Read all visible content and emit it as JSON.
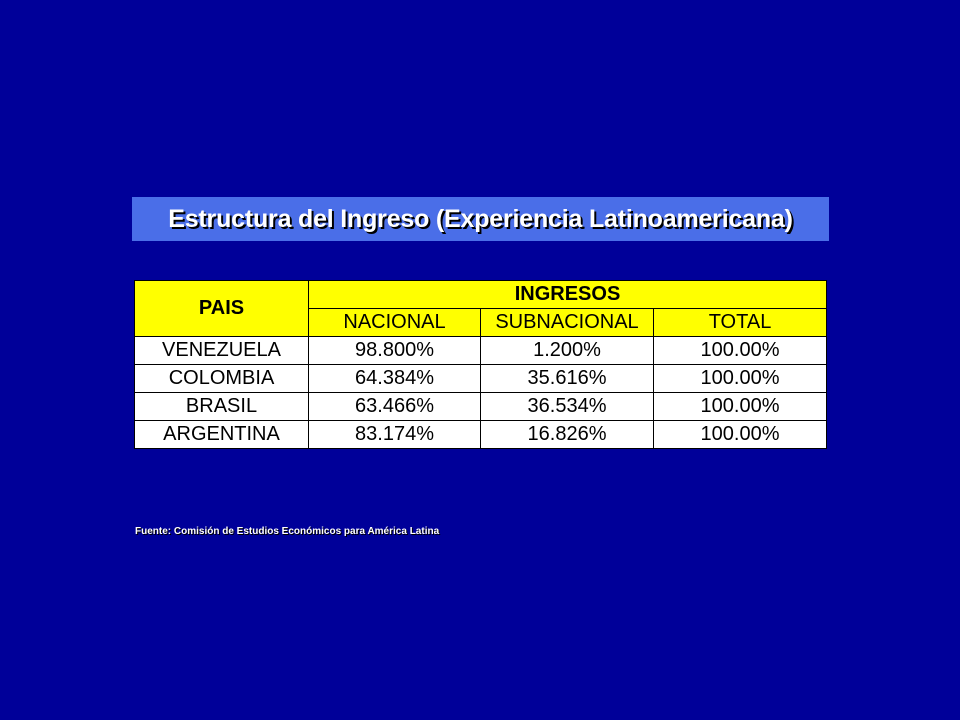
{
  "title": "Estructura del Ingreso (Experiencia Latinoamericana)",
  "table": {
    "header_pais": "PAIS",
    "header_group": "INGRESOS",
    "subheaders": [
      "NACIONAL",
      "SUBNACIONAL",
      "TOTAL"
    ],
    "rows": [
      {
        "pais": "VENEZUELA",
        "nacional": "98.800%",
        "subnacional": "1.200%",
        "total": "100.00%"
      },
      {
        "pais": "COLOMBIA",
        "nacional": "64.384%",
        "subnacional": "35.616%",
        "total": "100.00%"
      },
      {
        "pais": "BRASIL",
        "nacional": "63.466%",
        "subnacional": "36.534%",
        "total": "100.00%"
      },
      {
        "pais": "ARGENTINA",
        "nacional": "83.174%",
        "subnacional": "16.826%",
        "total": "100.00%"
      }
    ]
  },
  "source": "Fuente: Comisión de Estudios Económicos para América Latina",
  "colors": {
    "background": "#000099",
    "title_bar": "#4a6ee8",
    "header_fill": "#ffff00",
    "row_fill": "#ffffff"
  }
}
